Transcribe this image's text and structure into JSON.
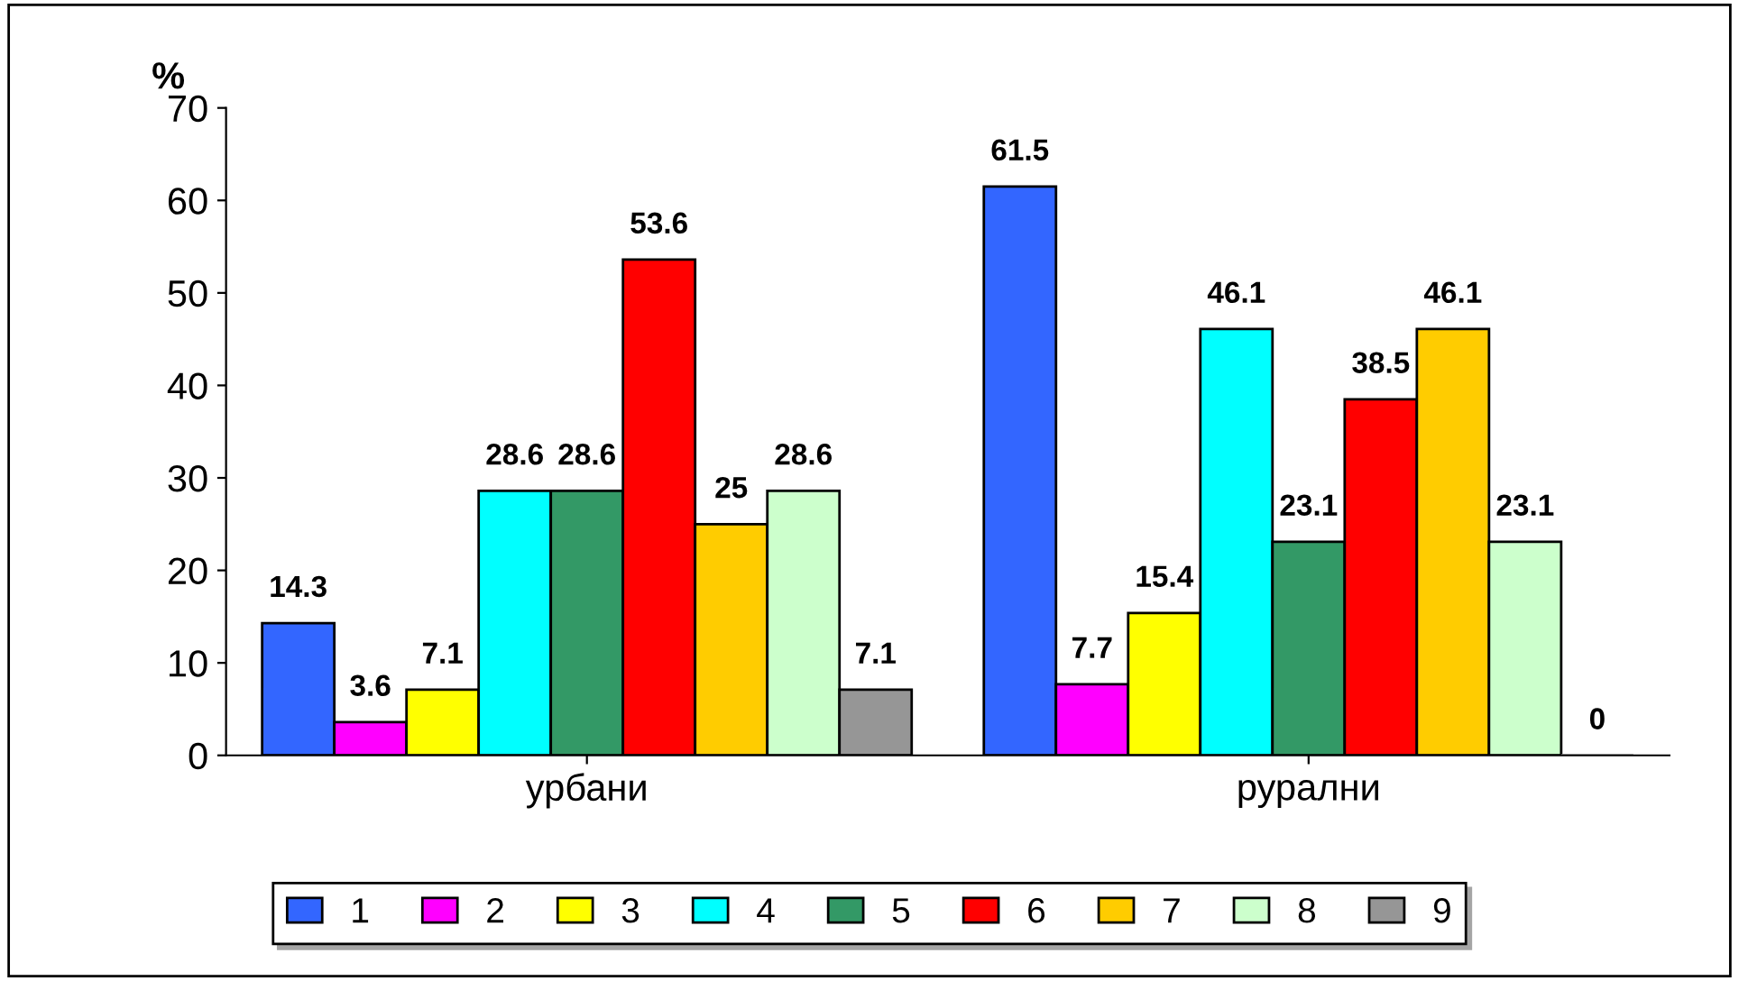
{
  "chart_data": {
    "type": "bar",
    "ylabel": "%",
    "categories": [
      "урбани",
      "рурални"
    ],
    "series": [
      {
        "name": "1",
        "color": "#3366ff",
        "values": [
          14.3,
          61.5
        ]
      },
      {
        "name": "2",
        "color": "#ff00ff",
        "values": [
          3.6,
          7.7
        ]
      },
      {
        "name": "3",
        "color": "#ffff00",
        "values": [
          7.1,
          15.4
        ]
      },
      {
        "name": "4",
        "color": "#00ffff",
        "values": [
          28.6,
          46.1
        ]
      },
      {
        "name": "5",
        "color": "#339966",
        "values": [
          28.6,
          23.1
        ]
      },
      {
        "name": "6",
        "color": "#ff0000",
        "values": [
          53.6,
          38.5
        ]
      },
      {
        "name": "7",
        "color": "#ffcc00",
        "values": [
          25,
          46.1
        ]
      },
      {
        "name": "8",
        "color": "#ccffcc",
        "values": [
          28.6,
          23.1
        ]
      },
      {
        "name": "9",
        "color": "#969696",
        "values": [
          7.1,
          0
        ]
      }
    ],
    "ylim": [
      0,
      70
    ],
    "yticks": [
      0,
      10,
      20,
      30,
      40,
      50,
      60,
      70
    ],
    "data_labels": true,
    "grid": false,
    "legend": "bottom"
  }
}
